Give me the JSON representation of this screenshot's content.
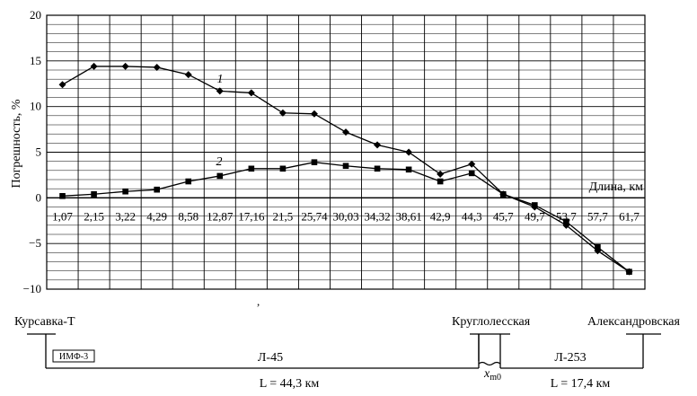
{
  "chart_data": {
    "type": "line",
    "ylabel": "Погрешность, %",
    "xlabel": "Длина, км",
    "ylim": [
      -10,
      20
    ],
    "yticks": [
      -10,
      -5,
      0,
      5,
      10,
      15,
      20
    ],
    "ytick_labels": [
      "−10",
      "−5",
      "0",
      "5",
      "10",
      "15",
      "20"
    ],
    "categories": [
      "1,07",
      "2,15",
      "3,22",
      "4,29",
      "8,58",
      "12,87",
      "17,16",
      "21,5",
      "25,74",
      "30,03",
      "34,32",
      "38,61",
      "42,9",
      "44,3",
      "45,7",
      "49,7",
      "53,7",
      "57,7",
      "61,7"
    ],
    "grid": true,
    "series": [
      {
        "name": "1",
        "marker": "diamond",
        "values": [
          12.4,
          14.4,
          14.4,
          14.3,
          13.5,
          11.7,
          11.5,
          9.3,
          9.2,
          7.2,
          5.8,
          5.0,
          2.6,
          3.7,
          0.4,
          -1.0,
          -3.0,
          -5.8,
          -8.1
        ]
      },
      {
        "name": "2",
        "marker": "square",
        "values": [
          0.2,
          0.4,
          0.7,
          0.9,
          1.8,
          2.4,
          3.2,
          3.2,
          3.9,
          3.5,
          3.2,
          3.1,
          1.8,
          2.7,
          0.4,
          -0.8,
          -2.6,
          -5.4,
          -8.1
        ]
      }
    ]
  },
  "line_diagram": {
    "stations": {
      "left": "Курсавка-Т",
      "middle": "Круглолесская",
      "right": "Александровская"
    },
    "device": "ИМФ-3",
    "line_left": "Л-45",
    "line_right": "Л-253",
    "length_left": "L = 44,3 км",
    "length_right": "L = 17,4 км",
    "fault_point": "x",
    "fault_point_sub": "m0"
  },
  "stray_mark": ","
}
